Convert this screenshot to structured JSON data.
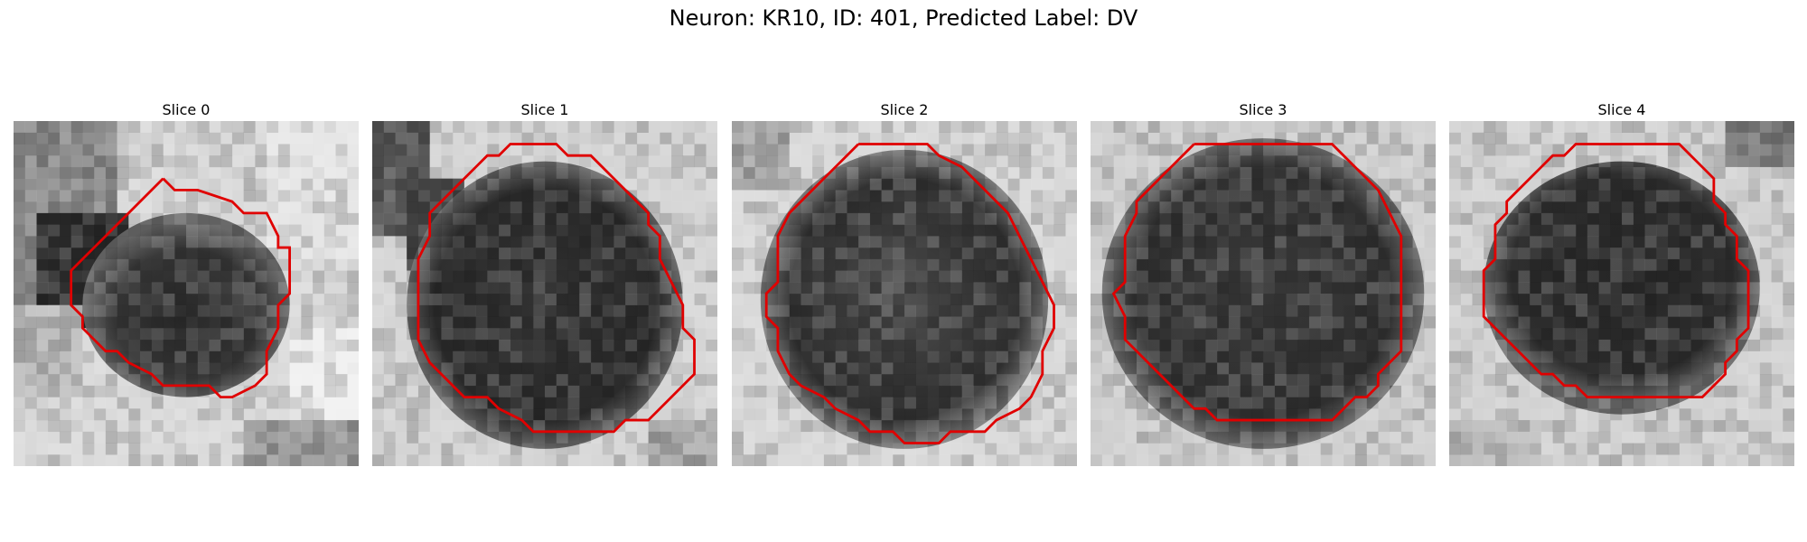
{
  "title": "Neuron: KR10, ID: 401, Predicted Label: DV",
  "contour_color": "#e00000",
  "panels": [
    {
      "label": "Slice 0"
    },
    {
      "label": "Slice 1"
    },
    {
      "label": "Slice 2"
    },
    {
      "label": "Slice 3"
    },
    {
      "label": "Slice 4"
    }
  ]
}
